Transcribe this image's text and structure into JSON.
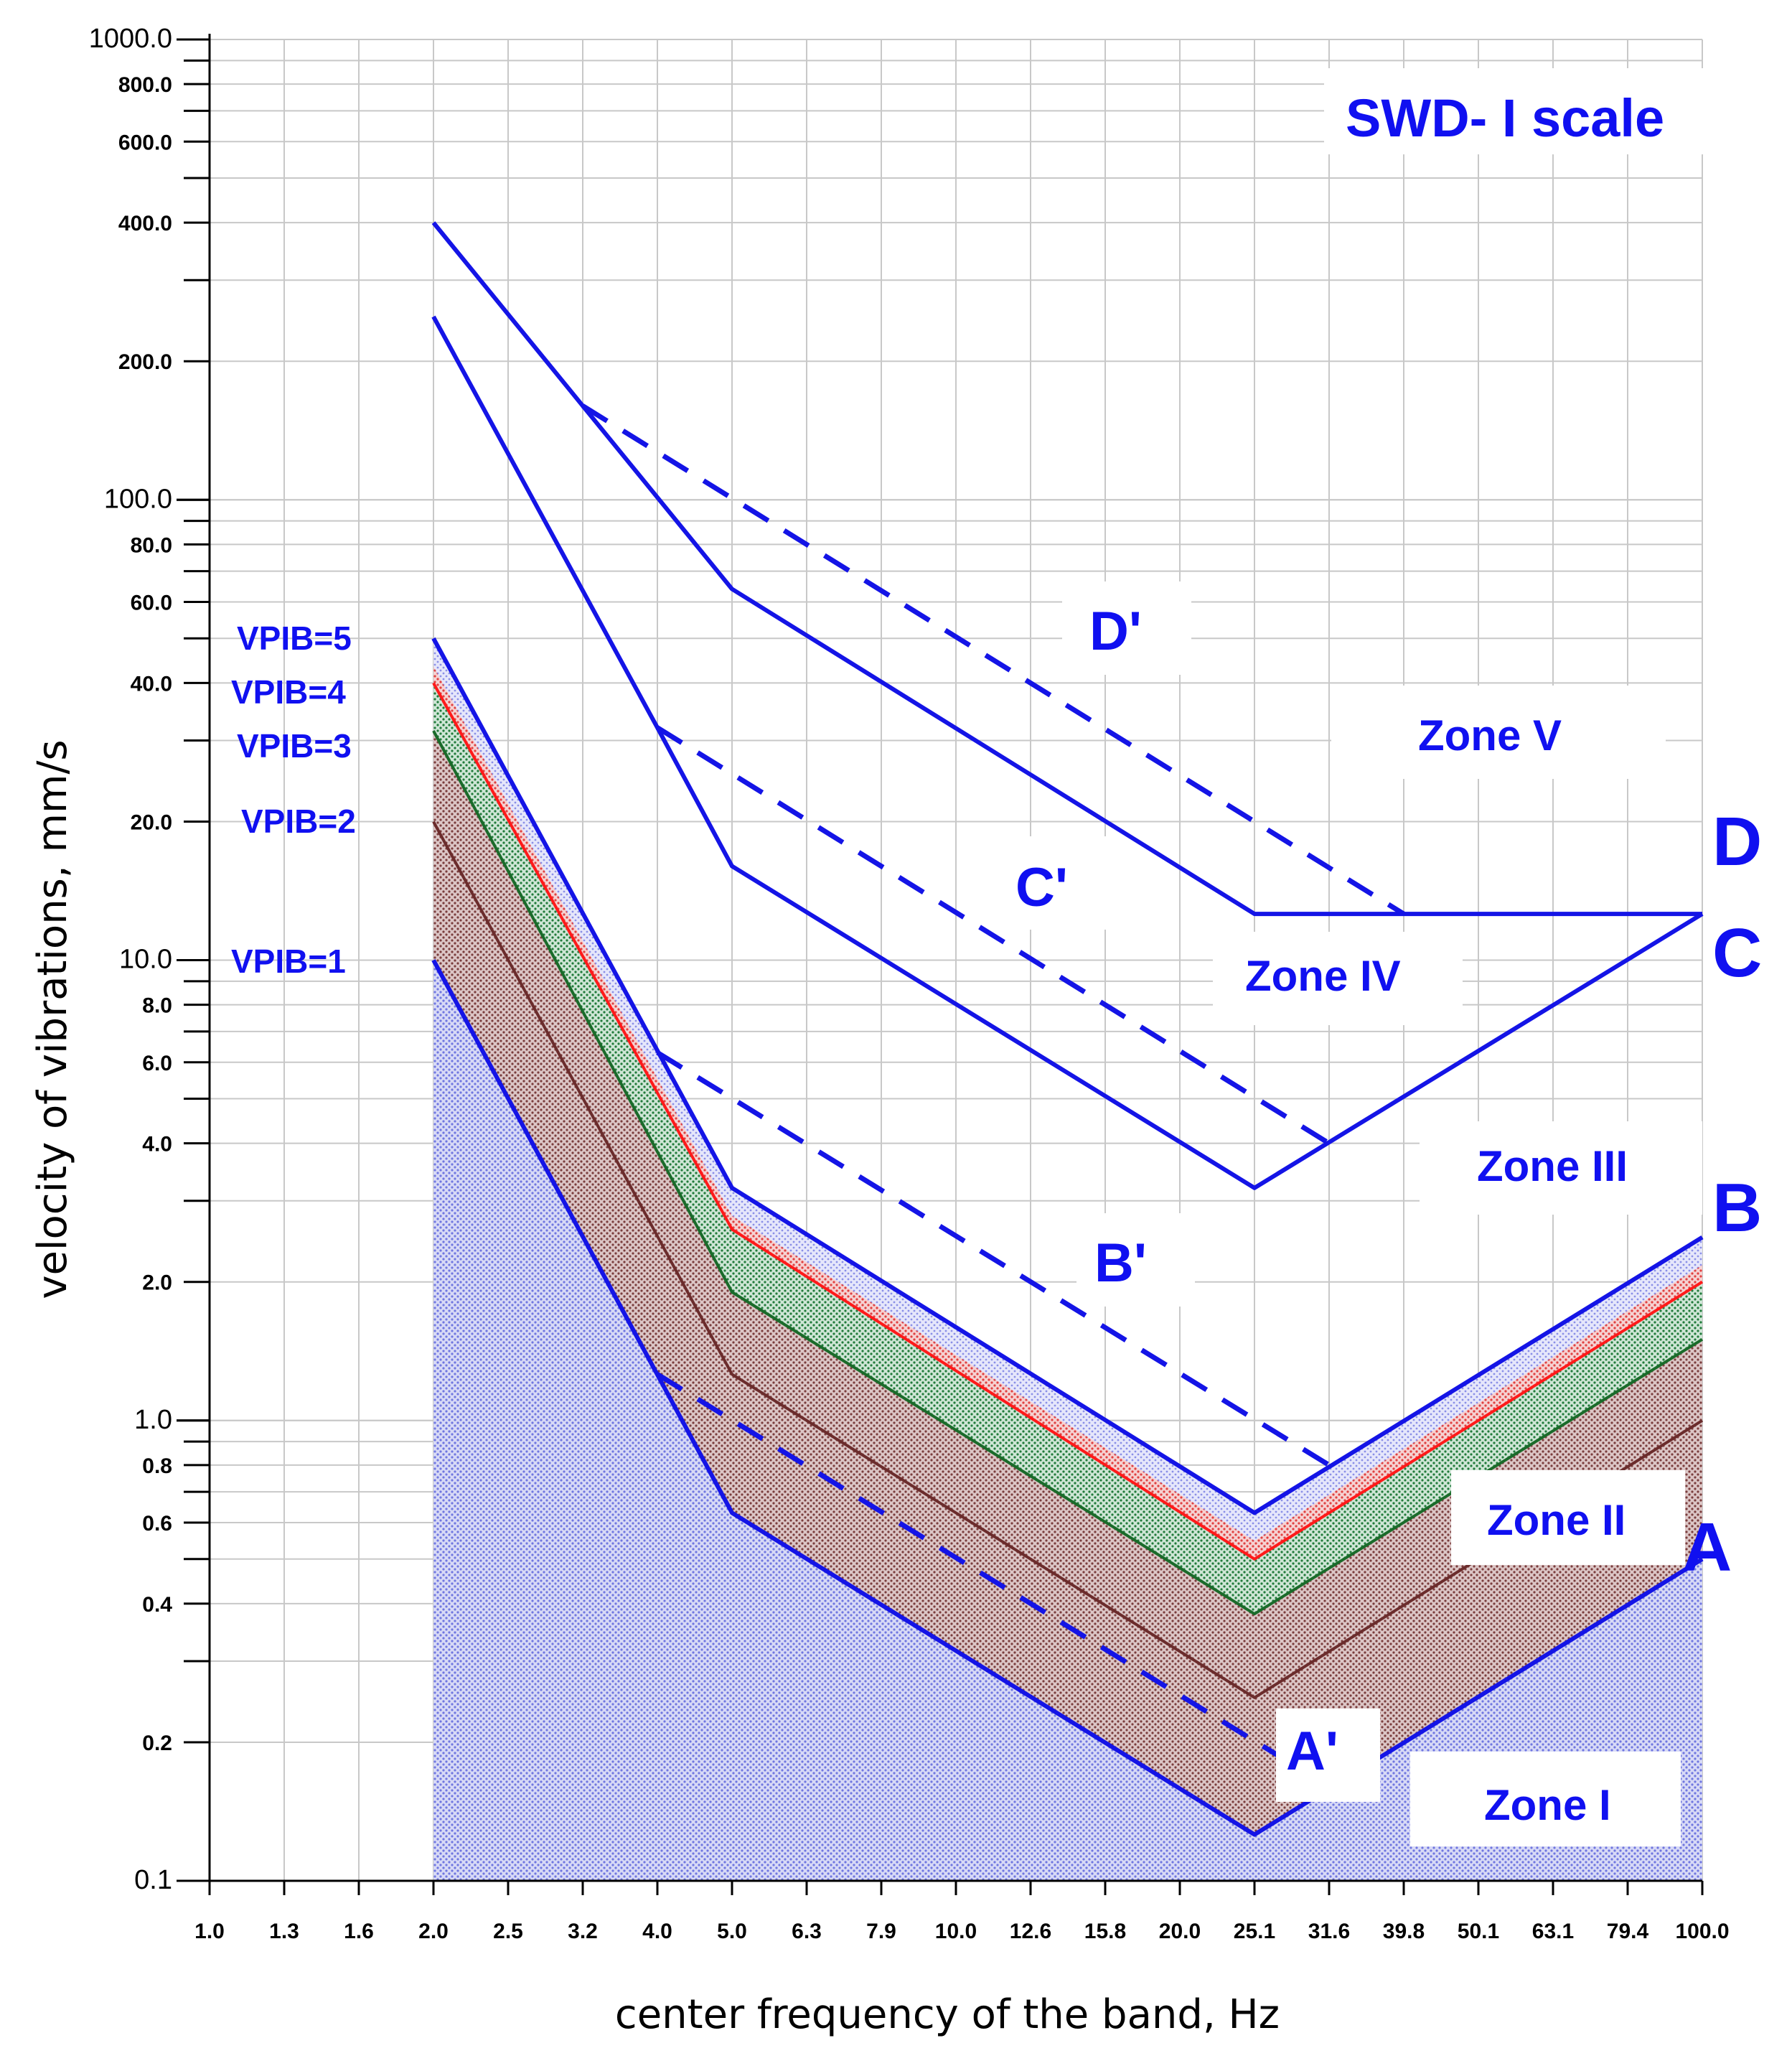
{
  "chart_data": {
    "type": "line",
    "title": "SWD- I scale",
    "xlabel": "center frequency of the band, Hz",
    "ylabel": "velocity of vibrations, mm/s",
    "yscale": "log",
    "ylim": [
      0.1,
      1000
    ],
    "x_ticks": [
      "1.0",
      "1.3",
      "1.6",
      "2.0",
      "2.5",
      "3.2",
      "4.0",
      "5.0",
      "6.3",
      "7.9",
      "10.0",
      "12.6",
      "15.8",
      "20.0",
      "25.1",
      "31.6",
      "39.8",
      "50.1",
      "63.1",
      "79.4",
      "100.0"
    ],
    "y_ticks": [
      {
        "value": 1000,
        "label": "1000.0"
      },
      {
        "value": 800,
        "label": "800.0"
      },
      {
        "value": 600,
        "label": "600.0"
      },
      {
        "value": 400,
        "label": "400.0"
      },
      {
        "value": 200,
        "label": "200.0"
      },
      {
        "value": 100,
        "label": "100.0"
      },
      {
        "value": 80,
        "label": "80.0"
      },
      {
        "value": 60,
        "label": "60.0"
      },
      {
        "value": 40,
        "label": "40.0"
      },
      {
        "value": 20,
        "label": "20.0"
      },
      {
        "value": 10,
        "label": "10.0"
      },
      {
        "value": 8,
        "label": "8.0"
      },
      {
        "value": 6,
        "label": "6.0"
      },
      {
        "value": 4,
        "label": "4.0"
      },
      {
        "value": 2,
        "label": "2.0"
      },
      {
        "value": 1,
        "label": "1.0"
      },
      {
        "value": 0.8,
        "label": "0.8"
      },
      {
        "value": 0.6,
        "label": "0.6"
      },
      {
        "value": 0.4,
        "label": "0.4"
      },
      {
        "value": 0.2,
        "label": "0.2"
      },
      {
        "value": 0.1,
        "label": "0.1"
      }
    ],
    "series": [
      {
        "name": "A",
        "style": "solid",
        "color": "#1414e6",
        "x": [
          2.0,
          5.0,
          25.1,
          100.0
        ],
        "y": [
          10,
          0.63,
          0.126,
          0.5
        ]
      },
      {
        "name": "VPIB=2",
        "style": "solid",
        "color": "#6b2c2c",
        "x": [
          2.0,
          5.0,
          25.1,
          100.0
        ],
        "y": [
          20,
          1.26,
          0.25,
          1.0
        ]
      },
      {
        "name": "VPIB=3",
        "style": "solid",
        "color": "#1a6b2a",
        "x": [
          2.0,
          5.0,
          25.1,
          100.0
        ],
        "y": [
          31.5,
          1.9,
          0.38,
          1.5
        ]
      },
      {
        "name": "VPIB=4",
        "style": "solid",
        "color": "#ff1a1a",
        "x": [
          2.0,
          5.0,
          25.1,
          100.0
        ],
        "y": [
          40,
          2.6,
          0.5,
          2.0
        ]
      },
      {
        "name": "B",
        "style": "solid",
        "color": "#1414e6",
        "x": [
          2.0,
          5.0,
          25.1,
          100.0
        ],
        "y": [
          50,
          3.2,
          0.63,
          2.5
        ]
      },
      {
        "name": "C",
        "style": "solid",
        "color": "#1414e6",
        "x": [
          2.0,
          4.0,
          5.0,
          25.1,
          100.0
        ],
        "y": [
          250,
          32,
          16,
          3.2,
          12.6
        ]
      },
      {
        "name": "D",
        "style": "solid",
        "color": "#1414e6",
        "x": [
          2.0,
          5.0,
          25.1,
          100.0
        ],
        "y": [
          400,
          64,
          12.6,
          12.6
        ]
      },
      {
        "name": "A'",
        "style": "dashed",
        "color": "#1414e6",
        "x": [
          4.0,
          31.6
        ],
        "y": [
          1.26,
          0.16
        ]
      },
      {
        "name": "B'",
        "style": "dashed",
        "color": "#1414e6",
        "x": [
          4.0,
          31.6
        ],
        "y": [
          6.3,
          0.8
        ]
      },
      {
        "name": "C'",
        "style": "dashed",
        "color": "#1414e6",
        "x": [
          4.0,
          31.6
        ],
        "y": [
          32,
          4.0
        ]
      },
      {
        "name": "D'",
        "style": "dashed",
        "color": "#1414e6",
        "x": [
          3.2,
          39.8
        ],
        "y": [
          160,
          12.6
        ]
      }
    ],
    "fills": [
      {
        "between": [
          "A",
          "VPIB=2"
        ],
        "color": "#a9787a"
      },
      {
        "between": [
          "VPIB=2",
          "VPIB=3"
        ],
        "color": "#9c6a6a"
      },
      {
        "between": [
          "VPIB=3",
          "VPIB=4"
        ],
        "color": "#3b9a5a"
      },
      {
        "between": [
          "VPIB=4",
          "B"
        ],
        "color": "#ef8a8a"
      },
      {
        "between": [
          "axis",
          "A"
        ],
        "color": "#8f95e8"
      }
    ],
    "legend": [
      {
        "label": "VPIB=5",
        "color": "#1414e6"
      },
      {
        "label": "VPIB=4",
        "color": "#ff1a1a"
      },
      {
        "label": "VPIB=3",
        "color": "#1a6b2a"
      },
      {
        "label": "VPIB=2",
        "color": "#6b2c2c"
      },
      {
        "label": "VPIB=1",
        "color": "#1414e6"
      }
    ],
    "curve_labels": [
      "A",
      "B",
      "C",
      "D"
    ],
    "dashed_labels": [
      "A'",
      "B'",
      "C'",
      "D'"
    ],
    "zones": [
      "Zone I",
      "Zone II",
      "Zone III",
      "Zone IV",
      "Zone V"
    ]
  }
}
